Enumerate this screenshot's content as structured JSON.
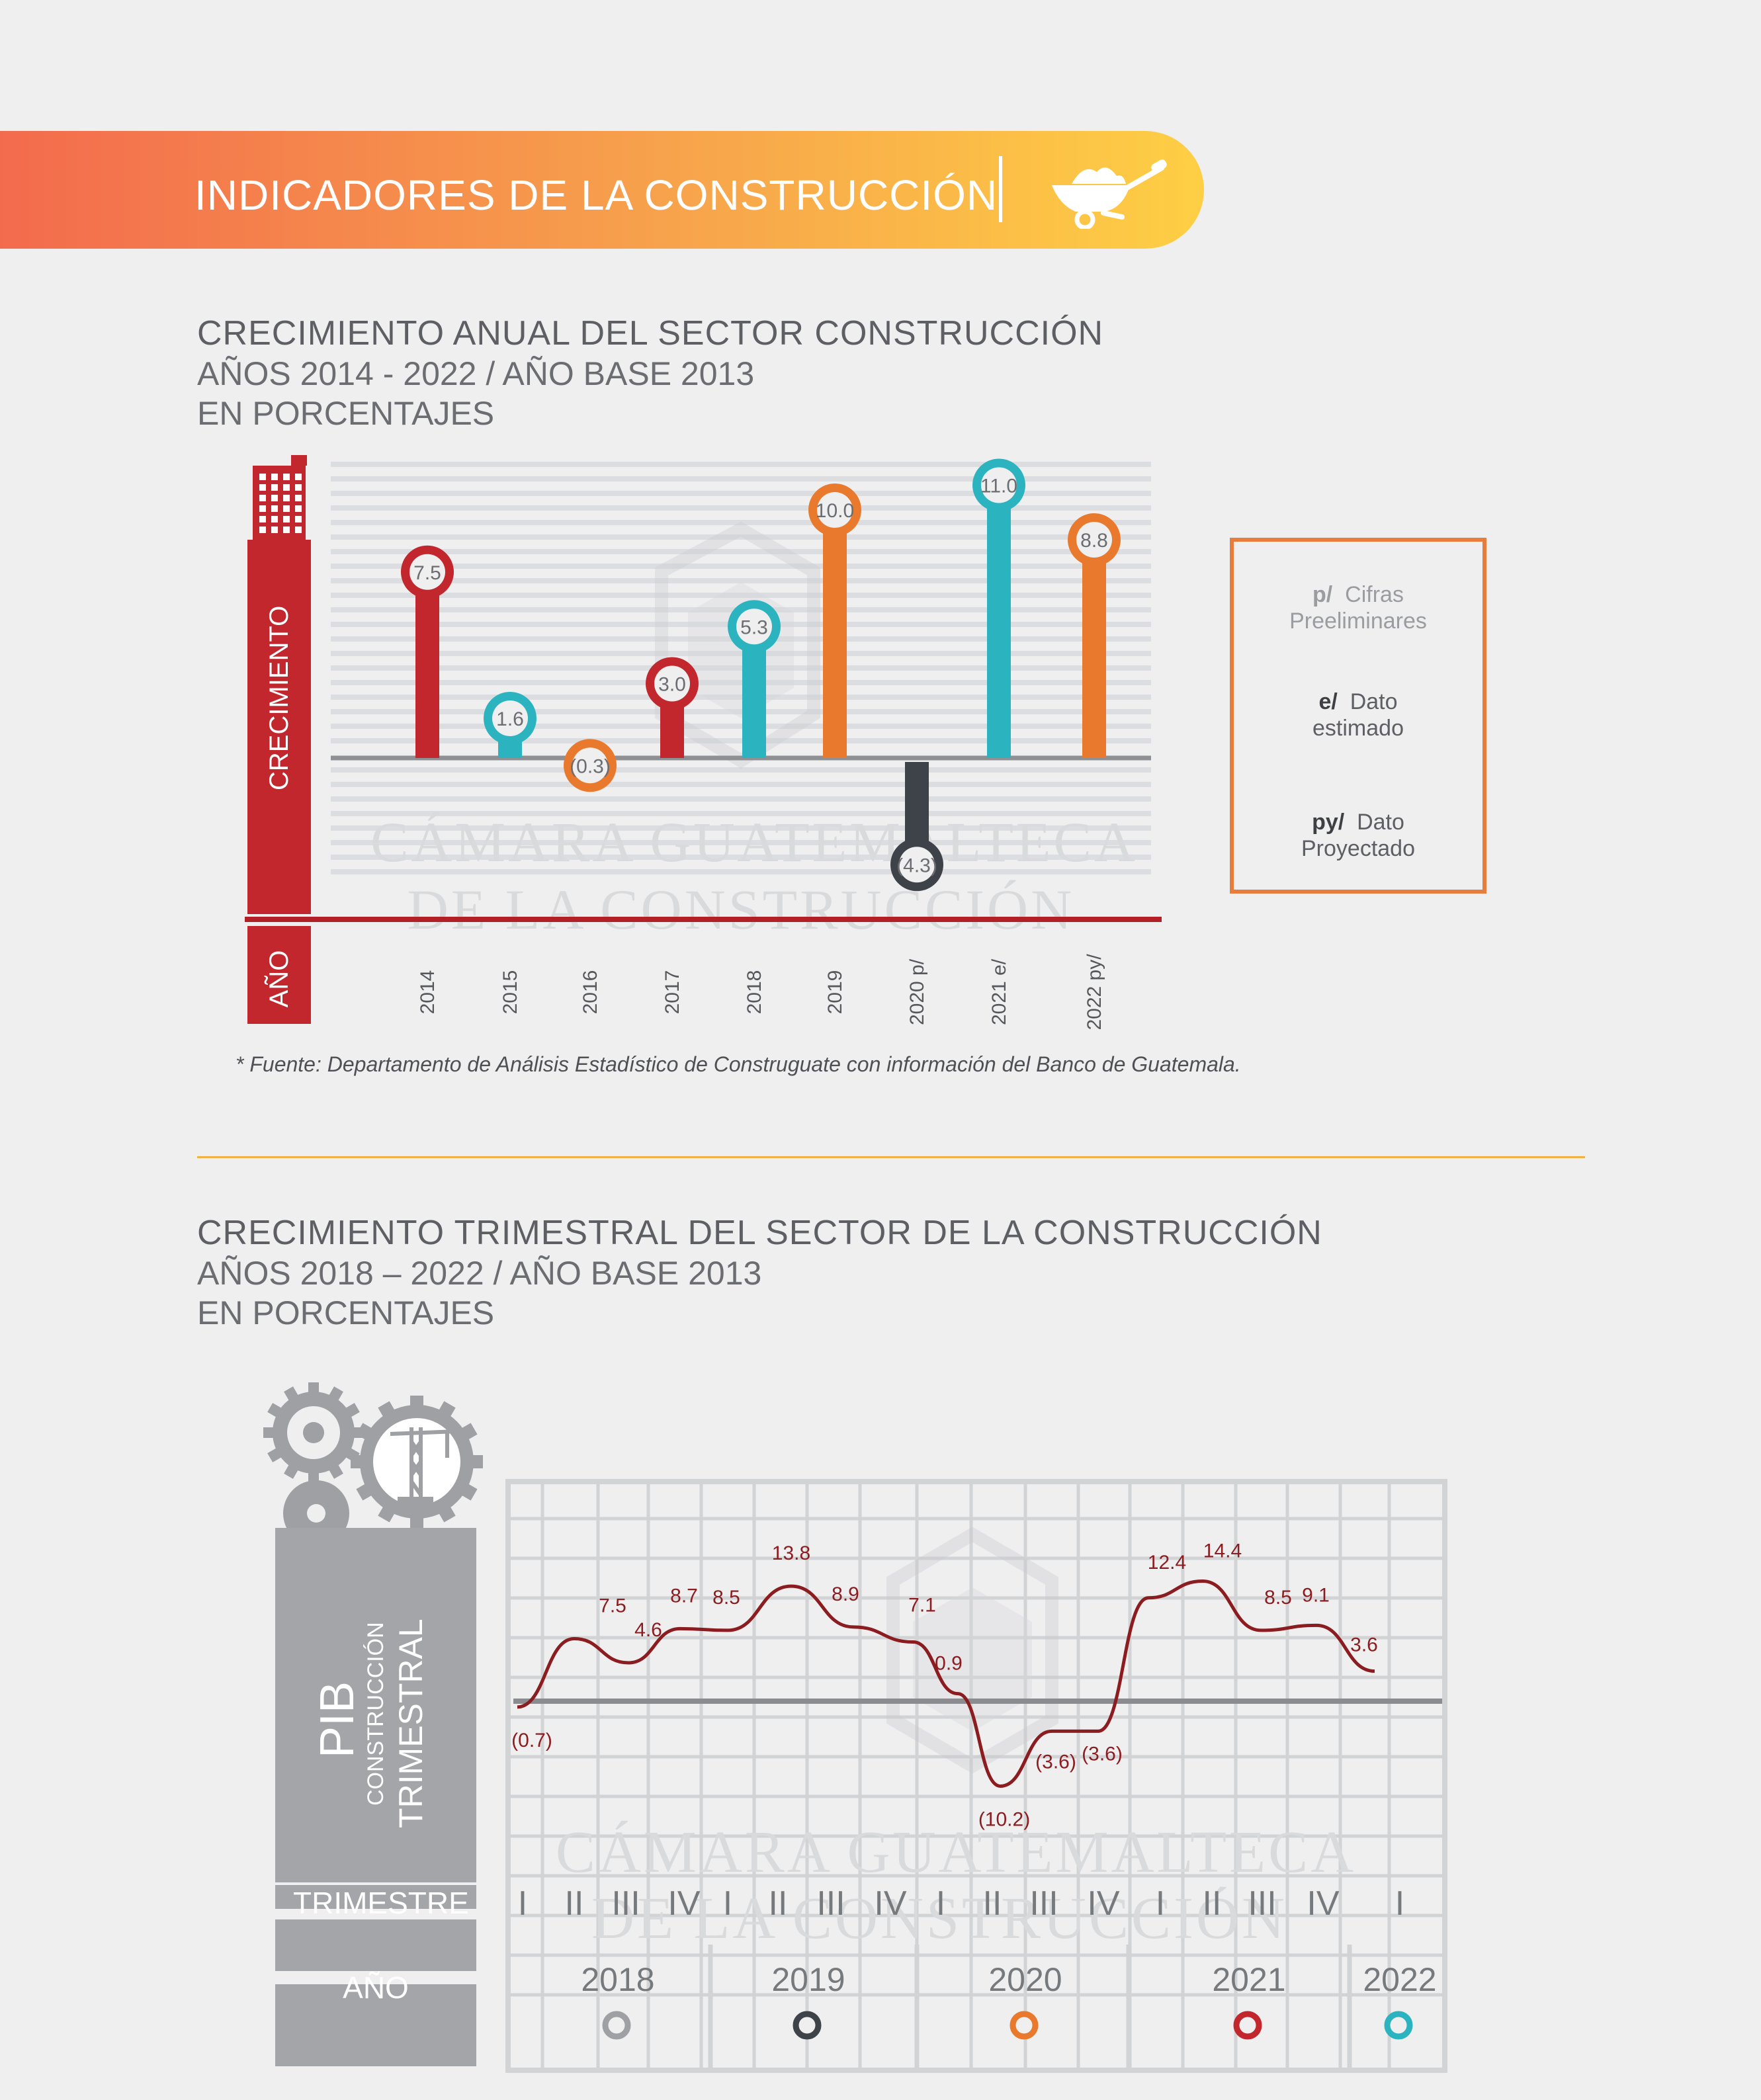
{
  "header": {
    "title": "INDICADORES DE LA CONSTRUCCIÓN",
    "icon": "wheelbarrow-icon"
  },
  "annual": {
    "title": "CRECIMIENTO ANUAL DEL SECTOR CONSTRUCCIÓN",
    "subtitle1": "AÑOS 2014 - 2022 / AÑO BASE 2013",
    "subtitle2": "EN PORCENTAJES",
    "axis_label": "CRECIMIENTO",
    "year_label": "AÑO",
    "watermark1": "CÁMARA GUATEMALTECA",
    "watermark2": "DE LA CONSTRUCCIÓN",
    "source": "* Fuente: Departamento de Análisis Estadístico de Construguate con información del Banco de Guatemala.",
    "legend": [
      {
        "key": "p/",
        "text1": "Cifras",
        "text2": "Preeliminares"
      },
      {
        "key": "e/",
        "text1": "Dato",
        "text2": "estimado"
      },
      {
        "key": "py/",
        "text1": "Dato",
        "text2": "Proyectado"
      }
    ]
  },
  "quarterly": {
    "title": "CRECIMIENTO TRIMESTRAL DEL SECTOR DE LA CONSTRUCCIÓN",
    "subtitle1": "AÑOS 2018 – 2022 / AÑO BASE 2013",
    "subtitle2": "EN PORCENTAJES",
    "pib": "PIB",
    "pib_sub1": "CONSTRUCCIÓN",
    "pib_sub2": "TRIMESTRAL",
    "trimestre_label": "TRIMESTRE",
    "year_label": "AÑO",
    "watermark1": "CÁMARA GUATEMALTECA",
    "watermark2": "DE LA CONSTRUCCIÓN"
  },
  "colors": {
    "red": "#c1272d",
    "teal": "#2bb3c0",
    "orange": "#e8792d",
    "dark": "#3e4349",
    "gray": "#9ea0a3",
    "line": "#8b1c1f"
  },
  "chart_data": [
    {
      "type": "bar",
      "title": "CRECIMIENTO ANUAL DEL SECTOR CONSTRUCCIÓN",
      "ylabel": "CRECIMIENTO",
      "xlabel": "AÑO",
      "ylim": [
        -5,
        12
      ],
      "categories": [
        "2014",
        "2015",
        "2016",
        "2017",
        "2018",
        "2019",
        "2020 p/",
        "2021 e/",
        "2022 py/"
      ],
      "values": [
        7.5,
        1.6,
        -0.3,
        3.0,
        5.3,
        10.0,
        -4.3,
        11.0,
        8.8
      ],
      "value_labels": [
        "7.5",
        "1.6",
        "(0.3)",
        "3.0",
        "5.3",
        "10.0",
        "(4.3)",
        "11.0",
        "8.8"
      ],
      "bar_colors": [
        "#c1272d",
        "#2bb3c0",
        "#e8792d",
        "#c1272d",
        "#2bb3c0",
        "#e8792d",
        "#3e4349",
        "#2bb3c0",
        "#e8792d"
      ]
    },
    {
      "type": "line",
      "title": "CRECIMIENTO TRIMESTRAL DEL SECTOR DE LA CONSTRUCCIÓN",
      "ylabel": "PIB CONSTRUCCIÓN TRIMESTRAL",
      "xlabel": "TRIMESTRE",
      "ylim": [
        -12,
        16
      ],
      "quarters": [
        "I",
        "II",
        "III",
        "IV",
        "I",
        "II",
        "III",
        "IV",
        "I",
        "II",
        "III",
        "IV",
        "I",
        "II",
        "III",
        "IV",
        "I"
      ],
      "years": [
        "2018",
        "2019",
        "2020",
        "2021",
        "2022"
      ],
      "year_colors": [
        "#9ea0a3",
        "#3e4349",
        "#e8792d",
        "#c1272d",
        "#2bb3c0"
      ],
      "values": [
        -0.7,
        7.5,
        4.6,
        8.7,
        8.5,
        13.8,
        8.9,
        7.1,
        0.9,
        -10.2,
        -3.6,
        -3.6,
        12.4,
        14.4,
        8.5,
        9.1,
        3.6
      ],
      "value_labels": [
        "(0.7)",
        "7.5",
        "4.6",
        "8.7",
        "8.5",
        "13.8",
        "8.9",
        "7.1",
        "0.9",
        "(10.2)",
        "(3.6)",
        "(3.6)",
        "12.4",
        "14.4",
        "8.5",
        "9.1",
        "3.6"
      ]
    }
  ]
}
